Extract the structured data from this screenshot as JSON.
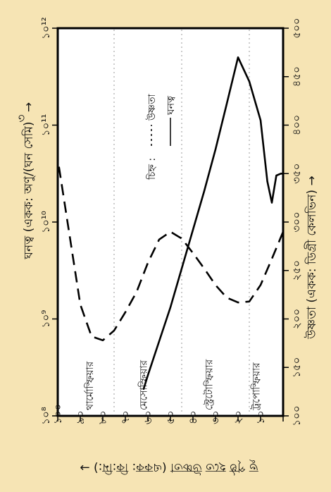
{
  "chart_data": {
    "type": "line",
    "orientation": "rotated-90-ccw",
    "height_axis": {
      "label": "ভূ পৃষ্ঠ হতে উচ্চতা (একক: কি:মি:) →",
      "range": [
        0,
        100
      ],
      "ticks": [
        0,
        10,
        20,
        30,
        40,
        50,
        60,
        70,
        80,
        90,
        100
      ],
      "tick_labels": [
        "",
        "১০",
        "২০",
        "৩০",
        "৪০",
        "৫০",
        "৬০",
        "৭০",
        "৮০",
        "৯০",
        "১০০"
      ]
    },
    "temperature_axis": {
      "label": "উষ্ণতা (একক: ডিগ্রী কেলভিন) →",
      "range": [
        100,
        500
      ],
      "ticks": [
        100,
        150,
        200,
        250,
        300,
        350,
        400,
        450,
        500
      ],
      "tick_labels": [
        "১০০",
        "১৫০",
        "২০০",
        "২৫০",
        "৩০০",
        "৩৫০",
        "৪০০",
        "৪৫০",
        "৫০০"
      ]
    },
    "density_axis": {
      "label": "ঘনত্ব (একক: অণু/(ঘন সেমি)",
      "scale": "log",
      "range": [
        8,
        12
      ],
      "ticks": [
        8,
        9,
        10,
        11,
        12
      ],
      "tick_labels": [
        "১০⁸",
        "১০⁹",
        "১০¹⁰",
        "১০¹¹",
        "১০¹²"
      ]
    },
    "layers": [
      {
        "label": "থার্মোস্ফিয়ার",
        "height": 86
      },
      {
        "label": "মেসোস্ফিয়ার",
        "height": 62
      },
      {
        "label": "স্ট্রেটোস্ফিয়ার",
        "height": 33
      },
      {
        "label": "ট্রপোস্ফিয়ার",
        "height": 12
      }
    ],
    "legend": {
      "title": "চিহ্ন :",
      "entries": [
        {
          "name": "উষ্ণতা",
          "style": "dashed"
        },
        {
          "name": "ঘনত্ব",
          "style": "solid"
        }
      ]
    },
    "series": [
      {
        "name": "উষ্ণতা",
        "style": "dashed",
        "points": [
          {
            "height": 0,
            "temp": 290
          },
          {
            "height": 5,
            "temp": 262
          },
          {
            "height": 10,
            "temp": 235
          },
          {
            "height": 15,
            "temp": 218
          },
          {
            "height": 20,
            "temp": 217
          },
          {
            "height": 25,
            "temp": 222
          },
          {
            "height": 30,
            "temp": 235
          },
          {
            "height": 35,
            "temp": 252
          },
          {
            "height": 40,
            "temp": 268
          },
          {
            "height": 45,
            "temp": 283
          },
          {
            "height": 50,
            "temp": 290
          },
          {
            "height": 55,
            "temp": 282
          },
          {
            "height": 60,
            "temp": 258
          },
          {
            "height": 65,
            "temp": 228
          },
          {
            "height": 70,
            "temp": 207
          },
          {
            "height": 75,
            "temp": 188
          },
          {
            "height": 80,
            "temp": 178
          },
          {
            "height": 85,
            "temp": 182
          },
          {
            "height": 90,
            "temp": 215
          },
          {
            "height": 95,
            "temp": 290
          },
          {
            "height": 100,
            "temp": 365
          }
        ]
      },
      {
        "name": "ঘনত্ব",
        "style": "solid",
        "points": [
          {
            "height": 0,
            "log_density": 10.5
          },
          {
            "height": 1,
            "log_density": 10.5
          },
          {
            "height": 3,
            "log_density": 10.48
          },
          {
            "height": 5,
            "log_density": 10.2
          },
          {
            "height": 7,
            "log_density": 10.42
          },
          {
            "height": 10,
            "log_density": 11.05
          },
          {
            "height": 15,
            "log_density": 11.45
          },
          {
            "height": 20,
            "log_density": 11.7
          },
          {
            "height": 25,
            "log_density": 11.22
          },
          {
            "height": 30,
            "log_density": 10.75
          },
          {
            "height": 35,
            "log_density": 10.32
          },
          {
            "height": 40,
            "log_density": 9.92
          },
          {
            "height": 45,
            "log_density": 9.52
          },
          {
            "height": 50,
            "log_density": 9.12
          },
          {
            "height": 55,
            "log_density": 8.77
          },
          {
            "height": 60,
            "log_density": 8.42
          },
          {
            "height": 62,
            "log_density": 8.27
          }
        ]
      }
    ],
    "grid": "dashed horizontal at layer boundaries"
  }
}
